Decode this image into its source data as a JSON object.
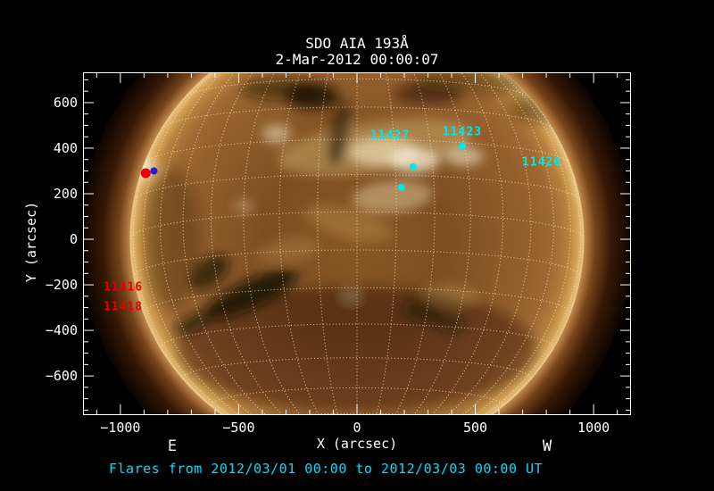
{
  "colors": {
    "background": "#000000",
    "axis": "#FFFFFF",
    "grid": "#FFE4BC",
    "cyan": "#00E8E8",
    "red": "#E60000",
    "blue": "#2020CC",
    "caption": "#00DDFF"
  },
  "chart_data": {
    "type": "solar-image",
    "title": "SDO AIA 193Å",
    "subtitle": "2-Mar-2012 00:00:07",
    "xlabel": "X (arcsec)",
    "ylabel": "Y (arcsec)",
    "east_label": "E",
    "west_label": "W",
    "caption": "Flares from 2012/03/01 00:00 to 2012/03/03 00:00 UT",
    "xlim": [
      -1158,
      1158
    ],
    "ylim": [
      -772,
      733
    ],
    "xticks": [
      -1000,
      -500,
      0,
      500,
      1000
    ],
    "yticks": [
      -600,
      -400,
      -200,
      0,
      200,
      400,
      600
    ],
    "x_minor_step": 100,
    "y_minor_step": 50,
    "solar_radius_arcsec": 960,
    "grid_spacing_deg": 10,
    "solar_b0_deg": -7.2,
    "active_region_labels": [
      {
        "noaa": "11427",
        "color": "#00E8E8",
        "x": 140,
        "y": 455
      },
      {
        "noaa": "11423",
        "color": "#00E8E8",
        "x": 445,
        "y": 470
      },
      {
        "noaa": "11426",
        "color": "#00E8E8",
        "x": 781,
        "y": 337
      },
      {
        "noaa": "11416",
        "color": "#E60000",
        "x": -988,
        "y": -212
      },
      {
        "noaa": "11418",
        "color": "#E60000",
        "x": -988,
        "y": -298
      }
    ],
    "flare_markers": [
      {
        "color": "#E60000",
        "x": -893,
        "y": 290,
        "r": 5.5
      },
      {
        "color": "#2020CC",
        "x": -858,
        "y": 300,
        "r": 4
      },
      {
        "color": "#00E8E8",
        "x": 445,
        "y": 408,
        "r": 4
      },
      {
        "color": "#00E8E8",
        "x": 237,
        "y": 318,
        "r": 4
      },
      {
        "color": "#00E8E8",
        "x": 188,
        "y": 228,
        "r": 4
      }
    ]
  }
}
